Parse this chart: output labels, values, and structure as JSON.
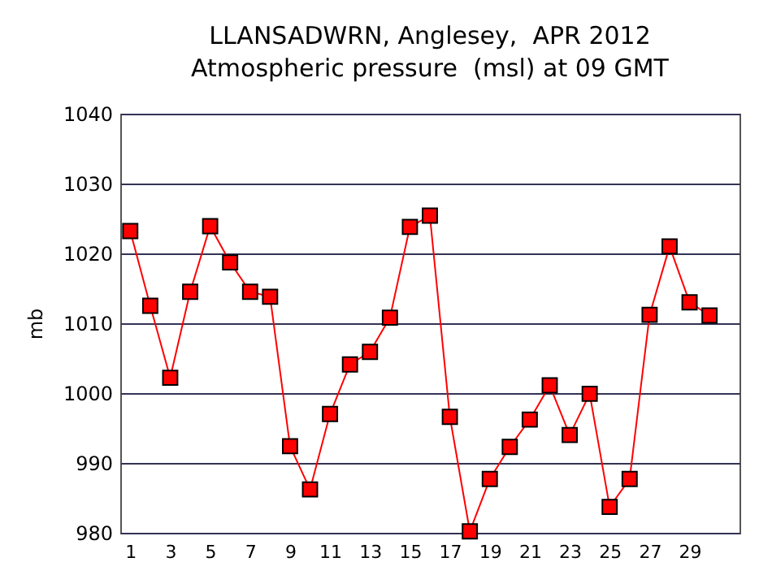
{
  "chart_data": {
    "type": "line",
    "title": [
      "LLANSADWRN, Anglesey,  APR 2012",
      "Atmospheric pressure  (msl) at 09 GMT"
    ],
    "ylabel": "mb",
    "x": [
      1,
      2,
      3,
      4,
      5,
      6,
      7,
      8,
      9,
      10,
      11,
      12,
      13,
      14,
      15,
      16,
      17,
      18,
      19,
      20,
      21,
      22,
      23,
      24,
      25,
      26,
      27,
      28,
      29,
      30
    ],
    "series": [
      {
        "color": "#ff0000",
        "values": [
          1023.2,
          1012.5,
          1002.2,
          1014.5,
          1023.9,
          1018.7,
          1014.5,
          1013.8,
          992.4,
          986.2,
          997,
          1004.1,
          1005.9,
          1010.8,
          1023.8,
          1025.4,
          996.6,
          980.2,
          987.7,
          992.3,
          996.2,
          1001.1,
          994,
          999.9,
          983.7,
          987.7,
          1011.2,
          1021,
          1013,
          1011.1
        ]
      }
    ],
    "xlim": [
      0.5,
      31.5
    ],
    "xticks": [
      1,
      3,
      5,
      7,
      9,
      11,
      13,
      15,
      17,
      19,
      21,
      23,
      25,
      27,
      29
    ],
    "ylim": [
      980,
      1040
    ],
    "yticks": [
      980,
      990,
      1000,
      1010,
      1020,
      1030,
      1040
    ],
    "grid": "y",
    "marker": "square",
    "line_style": "solid"
  }
}
